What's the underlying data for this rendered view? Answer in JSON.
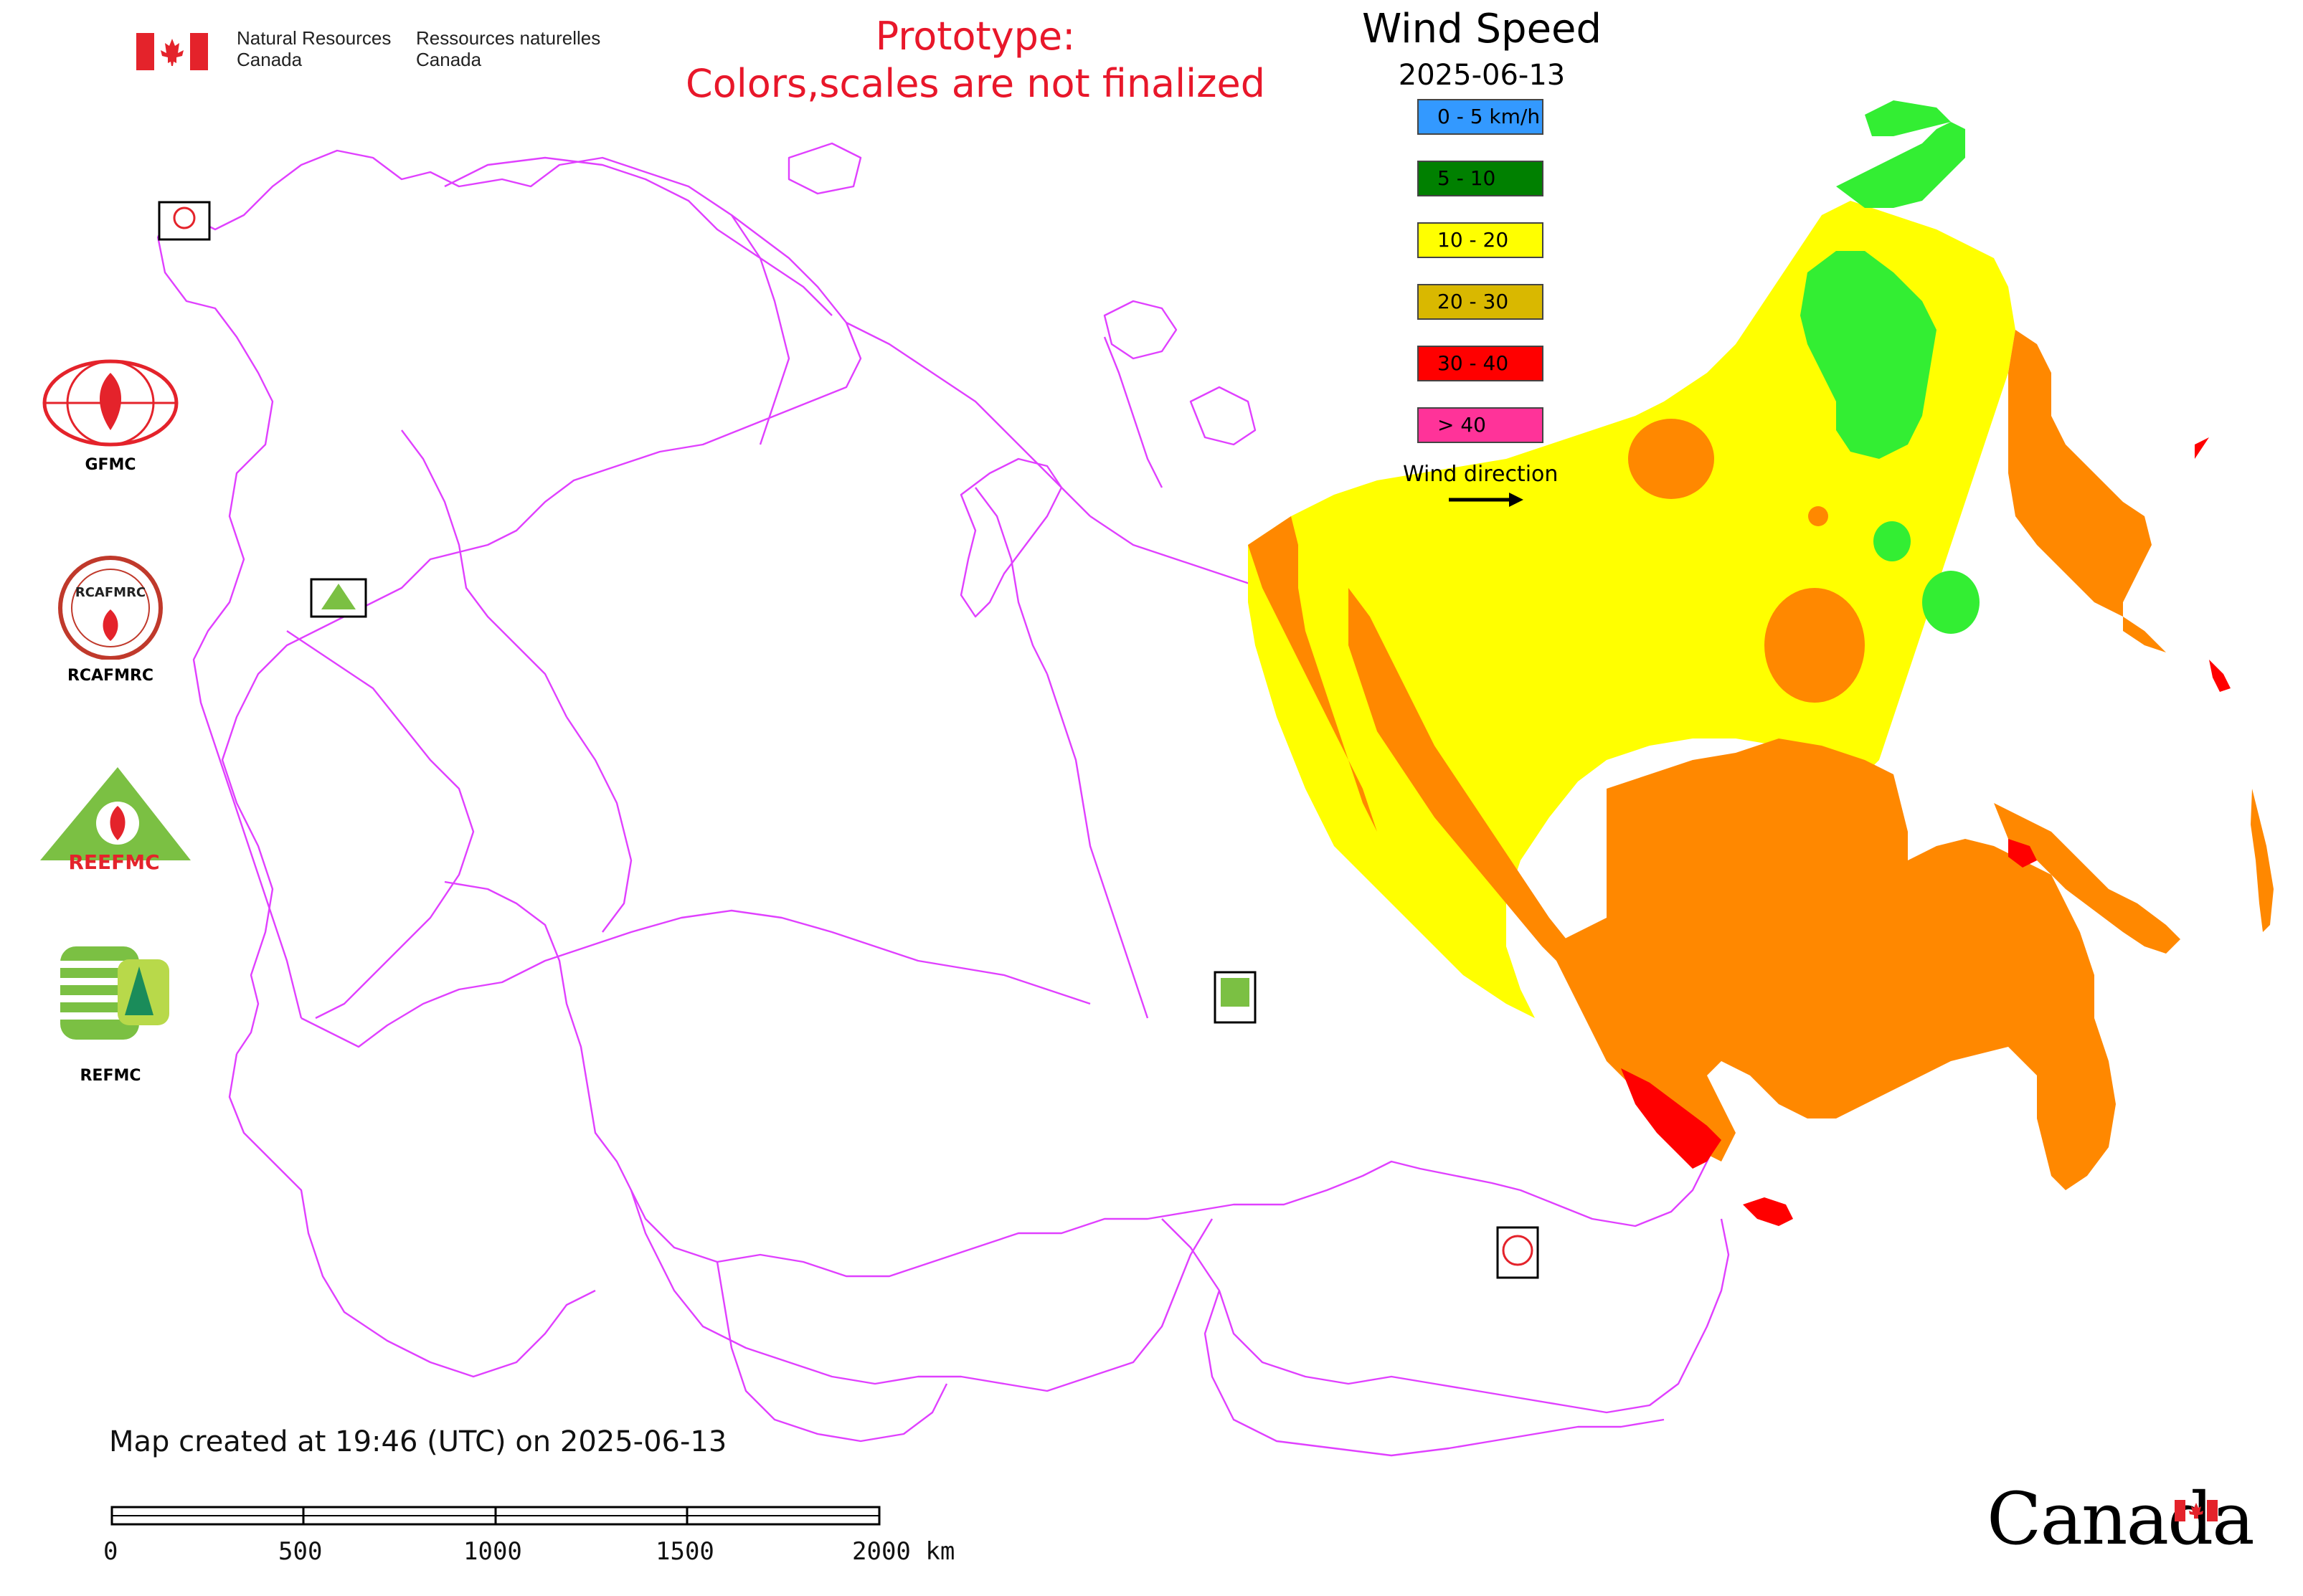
{
  "header": {
    "gov_en_line1": "Natural Resources",
    "gov_en_line2": "Canada",
    "gov_fr_line1": "Ressources naturelles",
    "gov_fr_line2": "Canada",
    "prototype_line1": "Prototype:",
    "prototype_line2": "Colors,scales are not finalized"
  },
  "legend": {
    "title": "Wind Speed",
    "date": "2025-06-13",
    "items": [
      {
        "label": "0 - 5 km/h",
        "color": "#3399ff"
      },
      {
        "label": "5 - 10",
        "color": "#008000"
      },
      {
        "label": "10 - 20",
        "color": "#ffff00"
      },
      {
        "label": "20 - 30",
        "color": "#d9b800"
      },
      {
        "label": "30 - 40",
        "color": "#ff0000"
      },
      {
        "label": "> 40",
        "color": "#ff3399"
      }
    ],
    "wind_direction_label": "Wind direction"
  },
  "logos": [
    {
      "label": "GFMC",
      "icon": "gfmc-logo-icon"
    },
    {
      "label": "RCAFMRC",
      "icon": "rcafmrc-logo-icon"
    },
    {
      "label": "REEFMC",
      "icon": "reefmc-logo-icon"
    },
    {
      "label": "REFMC",
      "icon": "refmc-logo-icon"
    }
  ],
  "logo_marks": {
    "reefmc_text": "REEFMC",
    "rcafmrc_text": "RCAFMRC"
  },
  "footer": {
    "created": "Map created at 19:46 (UTC) on 2025-06-13",
    "scale_ticks": [
      "0",
      "500",
      "1000",
      "1500",
      "2000 km"
    ],
    "canada_wordmark": "Canada"
  },
  "colors": {
    "boundary": "#e040ff",
    "calm": "#3399ff",
    "light": "#33ee33",
    "moderate": "#ffff00",
    "fresh": "#ff8800",
    "strong": "#ff0000",
    "gale": "#ff3399",
    "title_red": "#e8172a"
  }
}
